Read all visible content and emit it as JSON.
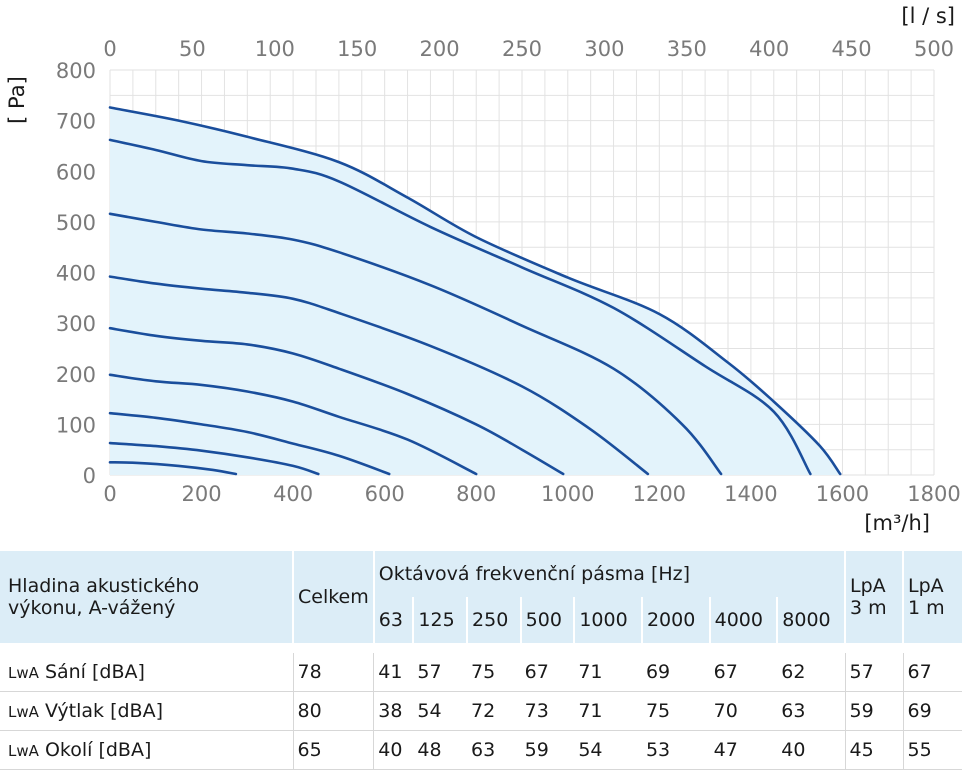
{
  "chart_data": {
    "type": "line",
    "x_top_label": "[l / s]",
    "x_bottom_label": "[m³/h]",
    "y_label": "[ Pa]",
    "x_top_ticks": [
      "0",
      "50",
      "100",
      "150",
      "200",
      "250",
      "300",
      "350",
      "400",
      "450",
      "500"
    ],
    "x_bottom_ticks": [
      "0",
      "200",
      "400",
      "600",
      "800",
      "1000",
      "1200",
      "1400",
      "1600",
      "1800"
    ],
    "y_ticks": [
      "0",
      "100",
      "200",
      "300",
      "400",
      "500",
      "600",
      "700",
      "800"
    ],
    "xlim": [
      0,
      1800
    ],
    "ylim": [
      0,
      800
    ],
    "grid": true,
    "colors": {
      "curve": "#1a4e9c",
      "fill": "#e3f3fb",
      "grid": "#e2e2e2"
    },
    "envelope": [
      [
        0,
        726
      ],
      [
        150,
        700
      ],
      [
        300,
        668
      ],
      [
        500,
        618
      ],
      [
        650,
        548
      ],
      [
        800,
        470
      ],
      [
        1000,
        390
      ],
      [
        1200,
        318
      ],
      [
        1350,
        222
      ],
      [
        1450,
        145
      ],
      [
        1550,
        58
      ],
      [
        1595,
        2
      ]
    ],
    "series": [
      {
        "values": [
          [
            0,
            726
          ],
          [
            150,
            700
          ],
          [
            300,
            668
          ],
          [
            500,
            618
          ],
          [
            650,
            548
          ],
          [
            800,
            470
          ],
          [
            1000,
            390
          ],
          [
            1200,
            318
          ],
          [
            1350,
            222
          ],
          [
            1450,
            145
          ],
          [
            1550,
            58
          ],
          [
            1595,
            2
          ]
        ]
      },
      {
        "values": [
          [
            0,
            662
          ],
          [
            100,
            642
          ],
          [
            200,
            620
          ],
          [
            300,
            612
          ],
          [
            400,
            605
          ],
          [
            500,
            580
          ],
          [
            700,
            490
          ],
          [
            900,
            410
          ],
          [
            1100,
            330
          ],
          [
            1300,
            215
          ],
          [
            1450,
            125
          ],
          [
            1530,
            2
          ]
        ]
      },
      {
        "values": [
          [
            0,
            516
          ],
          [
            100,
            500
          ],
          [
            200,
            485
          ],
          [
            300,
            477
          ],
          [
            400,
            465
          ],
          [
            500,
            440
          ],
          [
            700,
            375
          ],
          [
            900,
            295
          ],
          [
            1100,
            210
          ],
          [
            1250,
            100
          ],
          [
            1335,
            2
          ]
        ]
      },
      {
        "values": [
          [
            0,
            392
          ],
          [
            100,
            378
          ],
          [
            200,
            368
          ],
          [
            300,
            360
          ],
          [
            400,
            348
          ],
          [
            500,
            320
          ],
          [
            700,
            255
          ],
          [
            900,
            175
          ],
          [
            1050,
            90
          ],
          [
            1175,
            2
          ]
        ]
      },
      {
        "values": [
          [
            0,
            290
          ],
          [
            100,
            275
          ],
          [
            200,
            265
          ],
          [
            300,
            258
          ],
          [
            400,
            240
          ],
          [
            500,
            210
          ],
          [
            650,
            160
          ],
          [
            800,
            100
          ],
          [
            900,
            50
          ],
          [
            990,
            2
          ]
        ]
      },
      {
        "values": [
          [
            0,
            198
          ],
          [
            100,
            185
          ],
          [
            200,
            178
          ],
          [
            300,
            165
          ],
          [
            400,
            145
          ],
          [
            500,
            115
          ],
          [
            650,
            70
          ],
          [
            800,
            2
          ]
        ]
      },
      {
        "values": [
          [
            0,
            122
          ],
          [
            100,
            113
          ],
          [
            200,
            100
          ],
          [
            300,
            85
          ],
          [
            400,
            62
          ],
          [
            500,
            38
          ],
          [
            610,
            2
          ]
        ]
      },
      {
        "values": [
          [
            0,
            63
          ],
          [
            100,
            57
          ],
          [
            200,
            48
          ],
          [
            300,
            35
          ],
          [
            400,
            18
          ],
          [
            455,
            2
          ]
        ]
      },
      {
        "values": [
          [
            0,
            25
          ],
          [
            60,
            24
          ],
          [
            150,
            18
          ],
          [
            225,
            10
          ],
          [
            275,
            2
          ]
        ]
      }
    ]
  },
  "table": {
    "header_label": [
      "Hladina akustického",
      "výkonu, A-vážený"
    ],
    "celkem": "Celkem",
    "octave_title": "Oktávová frekvenční pásma [Hz]",
    "bands": [
      "63",
      "125",
      "250",
      "500",
      "1000",
      "2000",
      "4000",
      "8000"
    ],
    "lpa3": [
      "LpA",
      "3 m"
    ],
    "lpa1": [
      "LpA",
      "1 m"
    ],
    "rows": [
      {
        "prefix": "LwA",
        "label": "Sání [dBA]",
        "total": "78",
        "bands": [
          "41",
          "57",
          "75",
          "67",
          "71",
          "69",
          "67",
          "62"
        ],
        "lpa3": "57",
        "lpa1": "67"
      },
      {
        "prefix": "LwA",
        "label": "Výtlak [dBA]",
        "total": "80",
        "bands": [
          "38",
          "54",
          "72",
          "73",
          "71",
          "75",
          "70",
          "63"
        ],
        "lpa3": "59",
        "lpa1": "69"
      },
      {
        "prefix": "LwA",
        "label": "Okolí [dBA]",
        "total": "65",
        "bands": [
          "40",
          "48",
          "63",
          "59",
          "54",
          "53",
          "47",
          "40"
        ],
        "lpa3": "45",
        "lpa1": "55"
      }
    ]
  }
}
